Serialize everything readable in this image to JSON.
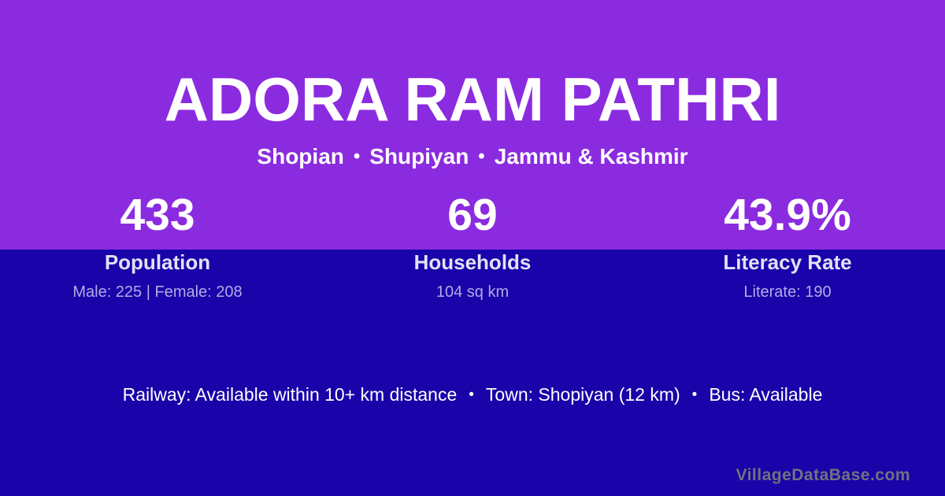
{
  "header": {
    "title": "ADORA RAM PATHRI",
    "location": {
      "parts": [
        "Shopian",
        "Shupiyan",
        "Jammu & Kashmir"
      ],
      "separator": "•"
    }
  },
  "stats": [
    {
      "value": "433",
      "label": "Population",
      "detail": "Male: 225 | Female: 208"
    },
    {
      "value": "69",
      "label": "Households",
      "detail": "104 sq km"
    },
    {
      "value": "43.9%",
      "label": "Literacy Rate",
      "detail": "Literate: 190"
    }
  ],
  "amenities": {
    "items": [
      "Railway: Available within 10+ km distance",
      "Town: Shopiyan (12 km)",
      "Bus: Available"
    ],
    "separator": "•"
  },
  "brand": {
    "watermark": "VillageDataBase.com"
  },
  "colors": {
    "top_background": "#8B2BE0",
    "bottom_background": "#1903A9",
    "primary_text": "#FFFFFF",
    "label_text": "#E4E0F4",
    "detail_text": "#B3AAE4",
    "watermark_text": "#73737E"
  }
}
